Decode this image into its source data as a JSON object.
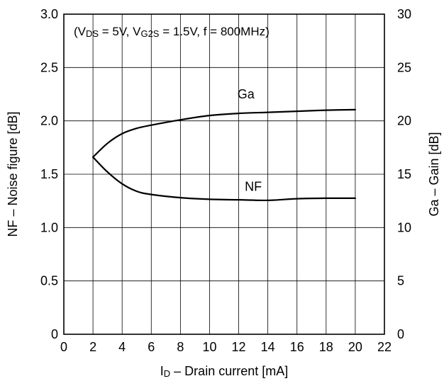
{
  "chart_data": {
    "type": "line",
    "conditions": {
      "open": "(V",
      "vds_sub": "DS",
      "vds_val": " = 5V, V",
      "vg2s_sub": "G2S",
      "rest": " = 1.5V, f = 800MHz)"
    },
    "xlabel": {
      "main": "I",
      "sub": "D",
      "rest": " – Drain current [mA]"
    },
    "ylabel_left": "NF – Noise figure [dB]",
    "ylabel_right": "Ga – Gain [dB]",
    "xlim": [
      0,
      22
    ],
    "ylim_left": [
      0,
      3.0
    ],
    "ylim_right": [
      0,
      30
    ],
    "x_ticks": [
      0,
      2,
      4,
      6,
      8,
      10,
      12,
      14,
      16,
      18,
      20,
      22
    ],
    "x_tick_labels": [
      "0",
      "2",
      "4",
      "6",
      "8",
      "10",
      "12",
      "14",
      "16",
      "18",
      "20",
      "22"
    ],
    "y_left_ticks": [
      0,
      0.5,
      1.0,
      1.5,
      2.0,
      2.5,
      3.0
    ],
    "y_left_tick_labels": [
      "0",
      "0.5",
      "1.0",
      "1.5",
      "2.0",
      "2.5",
      "3.0"
    ],
    "y_right_ticks": [
      0,
      5,
      10,
      15,
      20,
      25,
      30
    ],
    "y_right_tick_labels": [
      "0",
      "5",
      "10",
      "15",
      "20",
      "25",
      "30"
    ],
    "x_grid": [
      2,
      4,
      6,
      8,
      10,
      12,
      14,
      16,
      18,
      20
    ],
    "y_grid": [
      0.5,
      1.0,
      1.5,
      2.0,
      2.5
    ],
    "grid": true,
    "series": [
      {
        "name": "Ga",
        "axis": "right",
        "x": [
          2,
          3,
          4,
          5,
          6,
          8,
          10,
          12,
          14,
          16,
          18,
          20
        ],
        "y": [
          16.6,
          17.9,
          18.8,
          19.3,
          19.6,
          20.1,
          20.5,
          20.7,
          20.8,
          20.9,
          21.0,
          21.05
        ]
      },
      {
        "name": "NF",
        "axis": "left",
        "x": [
          2,
          3,
          4,
          5,
          6,
          8,
          10,
          12,
          14,
          16,
          18,
          20
        ],
        "y": [
          1.66,
          1.52,
          1.41,
          1.34,
          1.31,
          1.28,
          1.265,
          1.26,
          1.255,
          1.27,
          1.275,
          1.275
        ]
      }
    ],
    "series_labels": [
      {
        "text": "Ga",
        "x": 12.5,
        "y_right": 22.1
      },
      {
        "text": "NF",
        "x": 13,
        "y_left": 1.345
      }
    ],
    "line_color": "#000000"
  }
}
